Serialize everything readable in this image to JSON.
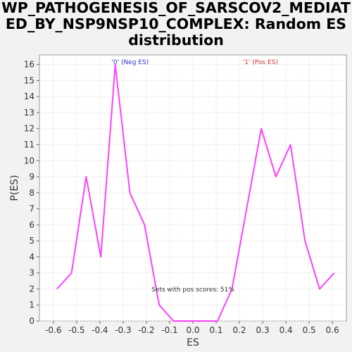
{
  "chart_data": {
    "type": "line",
    "title_lines": [
      "WP_PATHOGENESIS_OF_SARSCOV2_MEDIAT",
      "ED_BY_NSP9NSP10_COMPLEX: Random ES",
      "distribution"
    ],
    "xlabel": "ES",
    "ylabel": "P(ES)",
    "xlim": [
      -0.66,
      0.66
    ],
    "ylim": [
      0,
      16.6
    ],
    "x_ticks": [
      "-0.6",
      "-0.5",
      "-0.4",
      "-0.3",
      "-0.2",
      "-0.1",
      "0.0",
      "0.1",
      "0.2",
      "0.3",
      "0.4",
      "0.5",
      "0.6"
    ],
    "y_ticks": [
      "0",
      "1",
      "2",
      "3",
      "4",
      "5",
      "6",
      "7",
      "8",
      "9",
      "10",
      "11",
      "12",
      "13",
      "14",
      "15",
      "16"
    ],
    "grid": true,
    "line_color": "#ff40ff",
    "series": [
      {
        "x": [
          -0.585,
          -0.522,
          -0.459,
          -0.396,
          -0.334,
          -0.271,
          -0.208,
          -0.145,
          -0.083,
          -0.02,
          0.043,
          0.106,
          0.168,
          0.231,
          0.294,
          0.357,
          0.42,
          0.482,
          0.545,
          0.608
        ],
        "y": [
          2,
          3,
          9,
          4,
          16,
          8,
          6,
          1,
          0,
          0,
          0,
          0,
          2,
          7,
          12,
          9,
          11,
          5,
          2,
          3
        ]
      }
    ],
    "annotations": {
      "neg_label": "'0' (Neg ES)",
      "neg_color": "#3333cc",
      "pos_label": "'1' (Pos ES)",
      "pos_color": "#cc3333",
      "pos_scores": "Sets with pos scores: 51%"
    }
  }
}
